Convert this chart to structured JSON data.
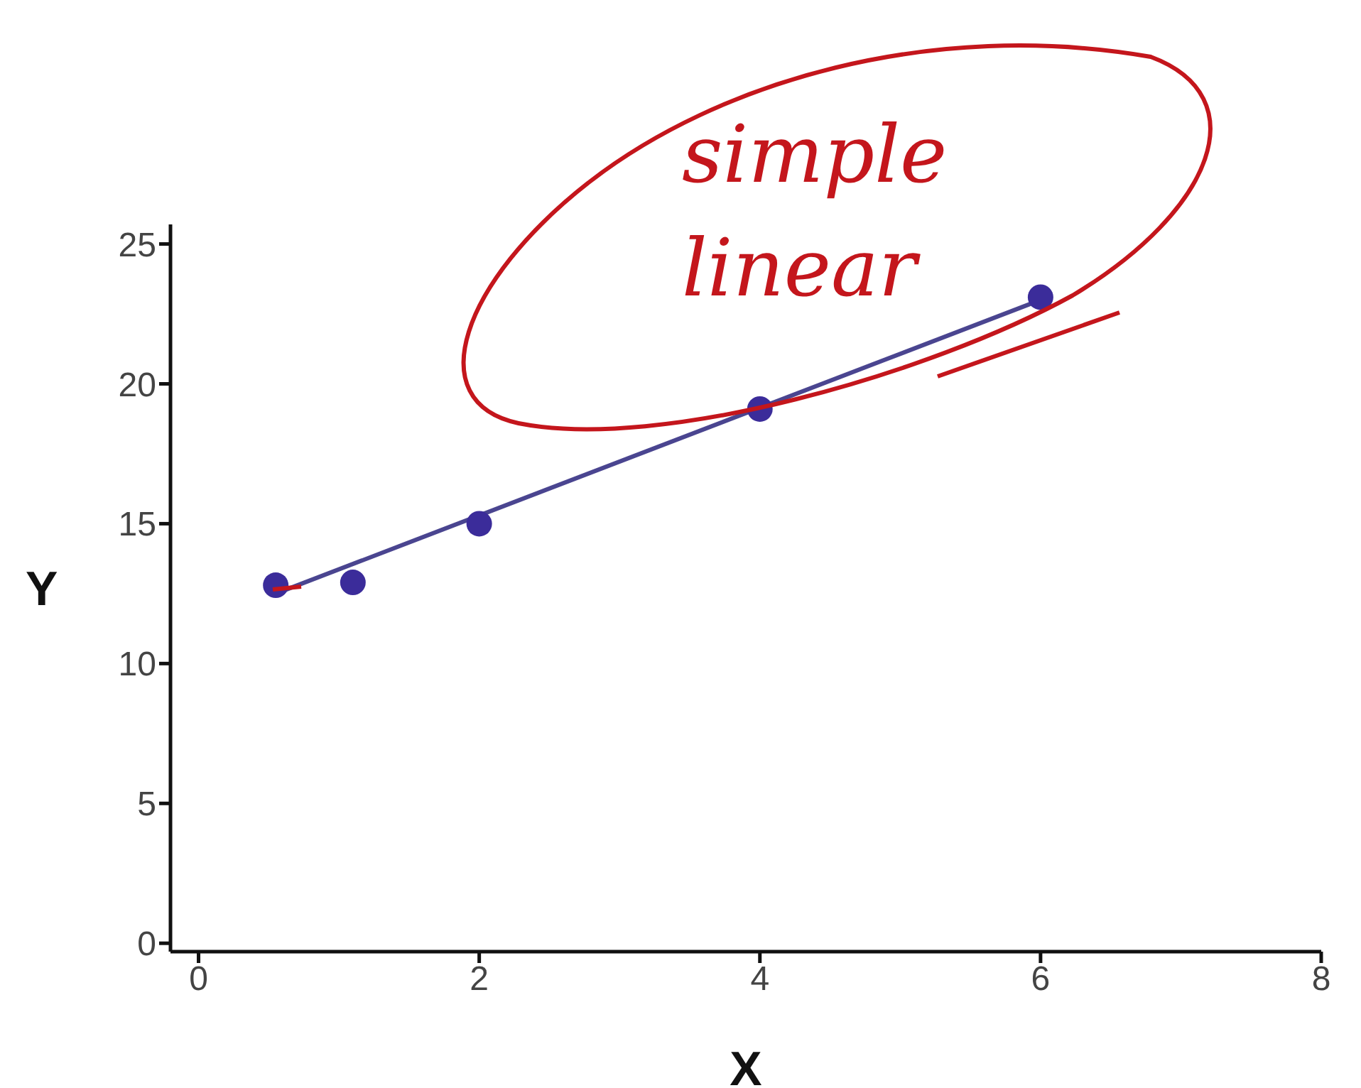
{
  "chart_data": {
    "type": "scatter",
    "xlabel": "X",
    "ylabel": "Y",
    "xlim": [
      -0.2,
      8
    ],
    "ylim": [
      -0.3,
      25.7
    ],
    "xticks": [
      0,
      2,
      4,
      6,
      8
    ],
    "yticks": [
      0,
      5,
      10,
      15,
      20,
      25
    ],
    "marker": "circle",
    "annotations": [
      "simple linear"
    ],
    "series": [
      {
        "type": "scatter",
        "color": "#3b2c9a",
        "x": [
          0.55,
          1.1,
          2,
          4,
          6
        ],
        "values": [
          12.8,
          12.9,
          15,
          19.1,
          23.1
        ]
      },
      {
        "type": "line",
        "color": "#4a4590",
        "x": [
          0.55,
          6
        ],
        "values": [
          12.5,
          23
        ],
        "marker": "none"
      }
    ]
  }
}
